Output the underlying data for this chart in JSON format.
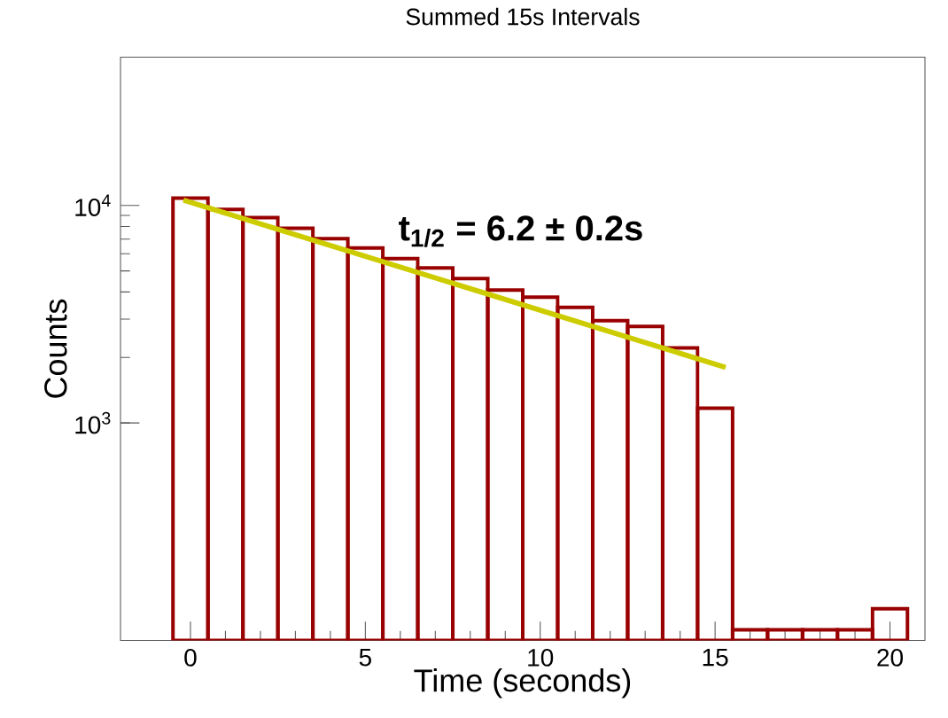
{
  "chart_data": {
    "type": "histogram",
    "title": "Summed 15s Intervals",
    "xlabel": "Time (seconds)",
    "ylabel": "Counts",
    "annotations": [
      "**t$_{1/2}$ = 6.2 ± 0.2s**"
    ],
    "bins": [
      -0.5,
      0.5,
      1.5,
      2.5,
      3.5,
      4.5,
      5.5,
      6.5,
      7.5,
      8.5,
      9.5,
      10.5,
      11.5,
      12.5,
      13.5,
      14.5,
      15.5,
      16.5,
      17.5,
      18.5,
      19.5,
      20.5
    ],
    "values": [
      10800,
      9580,
      8790,
      7860,
      7030,
      6370,
      5700,
      5160,
      4610,
      4080,
      3790,
      3400,
      2950,
      2780,
      2210,
      1170,
      112,
      112,
      112,
      112,
      140
    ],
    "color": "#990000",
    "log": "y",
    "series": [
      {
        "type": "line",
        "color": "#cccc00",
        "x": [
          -0.2,
          15.3
        ],
        "values": [
          10570,
          1800
        ]
      }
    ],
    "xlim": [
      -2,
      21
    ],
    "xticks": [
      0,
      5,
      10,
      15,
      20
    ],
    "ylim": [
      100,
      48000
    ],
    "yticks": [
      {
        "value": 1000,
        "label": "10$^{3}$"
      },
      {
        "value": 10000,
        "label": "10$^{4}$"
      }
    ],
    "grid": false
  }
}
